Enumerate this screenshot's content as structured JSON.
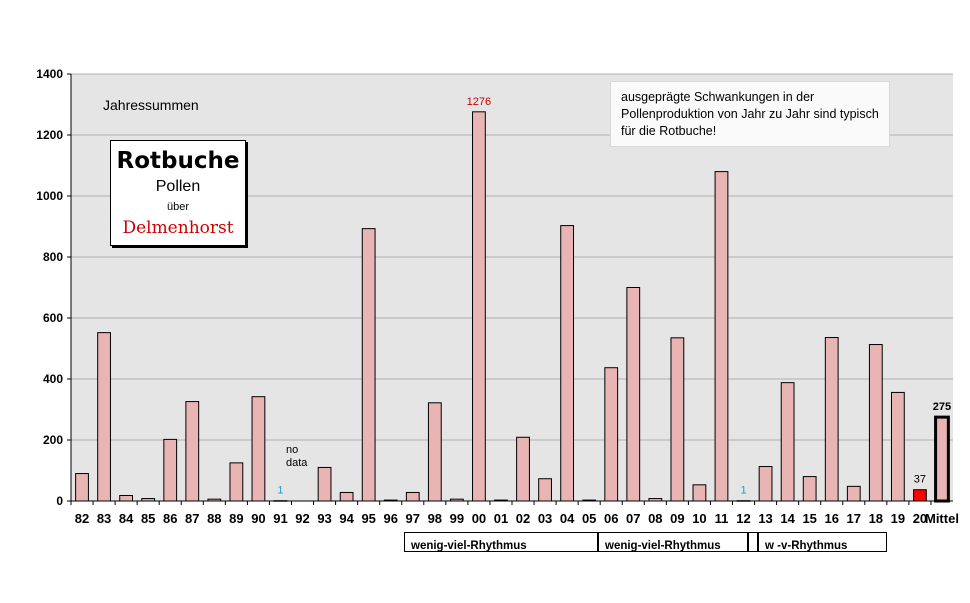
{
  "chart_data": {
    "type": "bar",
    "subtitle": "Jahressummen",
    "title_box": {
      "title": "Rotbuche",
      "line2": "Pollen",
      "line3": "über",
      "line4": "Delmenhorst"
    },
    "note": "ausgeprägte Schwankungen in der Pollenproduktion von Jahr zu Jahr  sind typisch für die Rotbuche!",
    "no_data_label": "no data",
    "categories": [
      "82",
      "83",
      "84",
      "85",
      "86",
      "87",
      "88",
      "89",
      "90",
      "91",
      "92",
      "93",
      "94",
      "95",
      "96",
      "97",
      "98",
      "99",
      "00",
      "01",
      "02",
      "03",
      "04",
      "05",
      "06",
      "07",
      "08",
      "09",
      "10",
      "11",
      "12",
      "13",
      "14",
      "15",
      "16",
      "17",
      "18",
      "19",
      "20",
      "Mittel"
    ],
    "values": [
      90,
      552,
      18,
      8,
      202,
      326,
      6,
      125,
      342,
      1,
      null,
      110,
      28,
      893,
      3,
      28,
      322,
      6,
      1276,
      3,
      209,
      73,
      903,
      3,
      437,
      700,
      8,
      535,
      53,
      1080,
      1,
      113,
      388,
      80,
      536,
      48,
      513,
      356,
      37,
      275
    ],
    "data_labels": [
      {
        "category": "91",
        "text": "1",
        "color": "#1f9fd6"
      },
      {
        "category": "00",
        "text": "1276",
        "color": "#cc0000"
      },
      {
        "category": "12",
        "text": "1",
        "color": "#1f9fd6"
      },
      {
        "category": "20",
        "text": "37",
        "color": "#000000"
      },
      {
        "category": "Mittel",
        "text": "275",
        "color": "#000000",
        "bold": true
      }
    ],
    "ylim": [
      0,
      1400
    ],
    "yticks": [
      0,
      200,
      400,
      600,
      800,
      1000,
      1200,
      1400
    ],
    "grid": true,
    "colors": {
      "bar": "#e8b4b4",
      "current_year_bar": "#ff0000",
      "mean_bar": "#e8b4b4",
      "plot_background": "#e5e5e5",
      "gridline": "#b0b0b0"
    },
    "rhythm_boxes": [
      "wenig-viel-Rhythmus",
      "wenig-viel-Rhythmus",
      "w -v-Rhythmus"
    ]
  }
}
